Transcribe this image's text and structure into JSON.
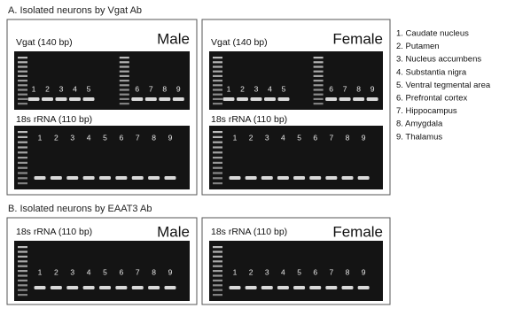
{
  "sections": [
    {
      "title": "A. Isolated neurons by Vgat Ab",
      "panels": [
        {
          "sex": "Male",
          "gels": [
            {
              "label": "Vgat (140 bp)",
              "lanes": [
                "1",
                "2",
                "3",
                "4",
                "5",
                "6",
                "7",
                "8",
                "9"
              ]
            },
            {
              "label": "18s rRNA (110 bp)",
              "lanes": [
                "1",
                "2",
                "3",
                "4",
                "5",
                "6",
                "7",
                "8",
                "9"
              ]
            }
          ]
        },
        {
          "sex": "Female",
          "gels": [
            {
              "label": "Vgat (140 bp)",
              "lanes": [
                "1",
                "2",
                "3",
                "4",
                "5",
                "6",
                "7",
                "8",
                "9"
              ]
            },
            {
              "label": "18s rRNA (110 bp)",
              "lanes": [
                "1",
                "2",
                "3",
                "4",
                "5",
                "6",
                "7",
                "8",
                "9"
              ]
            }
          ]
        }
      ]
    },
    {
      "title": "B. Isolated neurons by EAAT3 Ab",
      "panels": [
        {
          "sex": "Male",
          "gels": [
            {
              "label": "18s rRNA (110 bp)",
              "lanes": [
                "1",
                "2",
                "3",
                "4",
                "5",
                "6",
                "7",
                "8",
                "9"
              ]
            }
          ]
        },
        {
          "sex": "Female",
          "gels": [
            {
              "label": "18s rRNA (110 bp)",
              "lanes": [
                "1",
                "2",
                "3",
                "4",
                "5",
                "6",
                "7",
                "8",
                "9"
              ]
            }
          ]
        }
      ]
    }
  ],
  "legend": [
    "1. Caudate nucleus",
    "2. Putamen",
    "3. Nucleus accumbens",
    "4. Substantia nigra",
    "5. Ventral tegmental area",
    "6. Prefrontal cortex",
    "7. Hippocampus",
    "8. Amygdala",
    "9. Thalamus"
  ]
}
